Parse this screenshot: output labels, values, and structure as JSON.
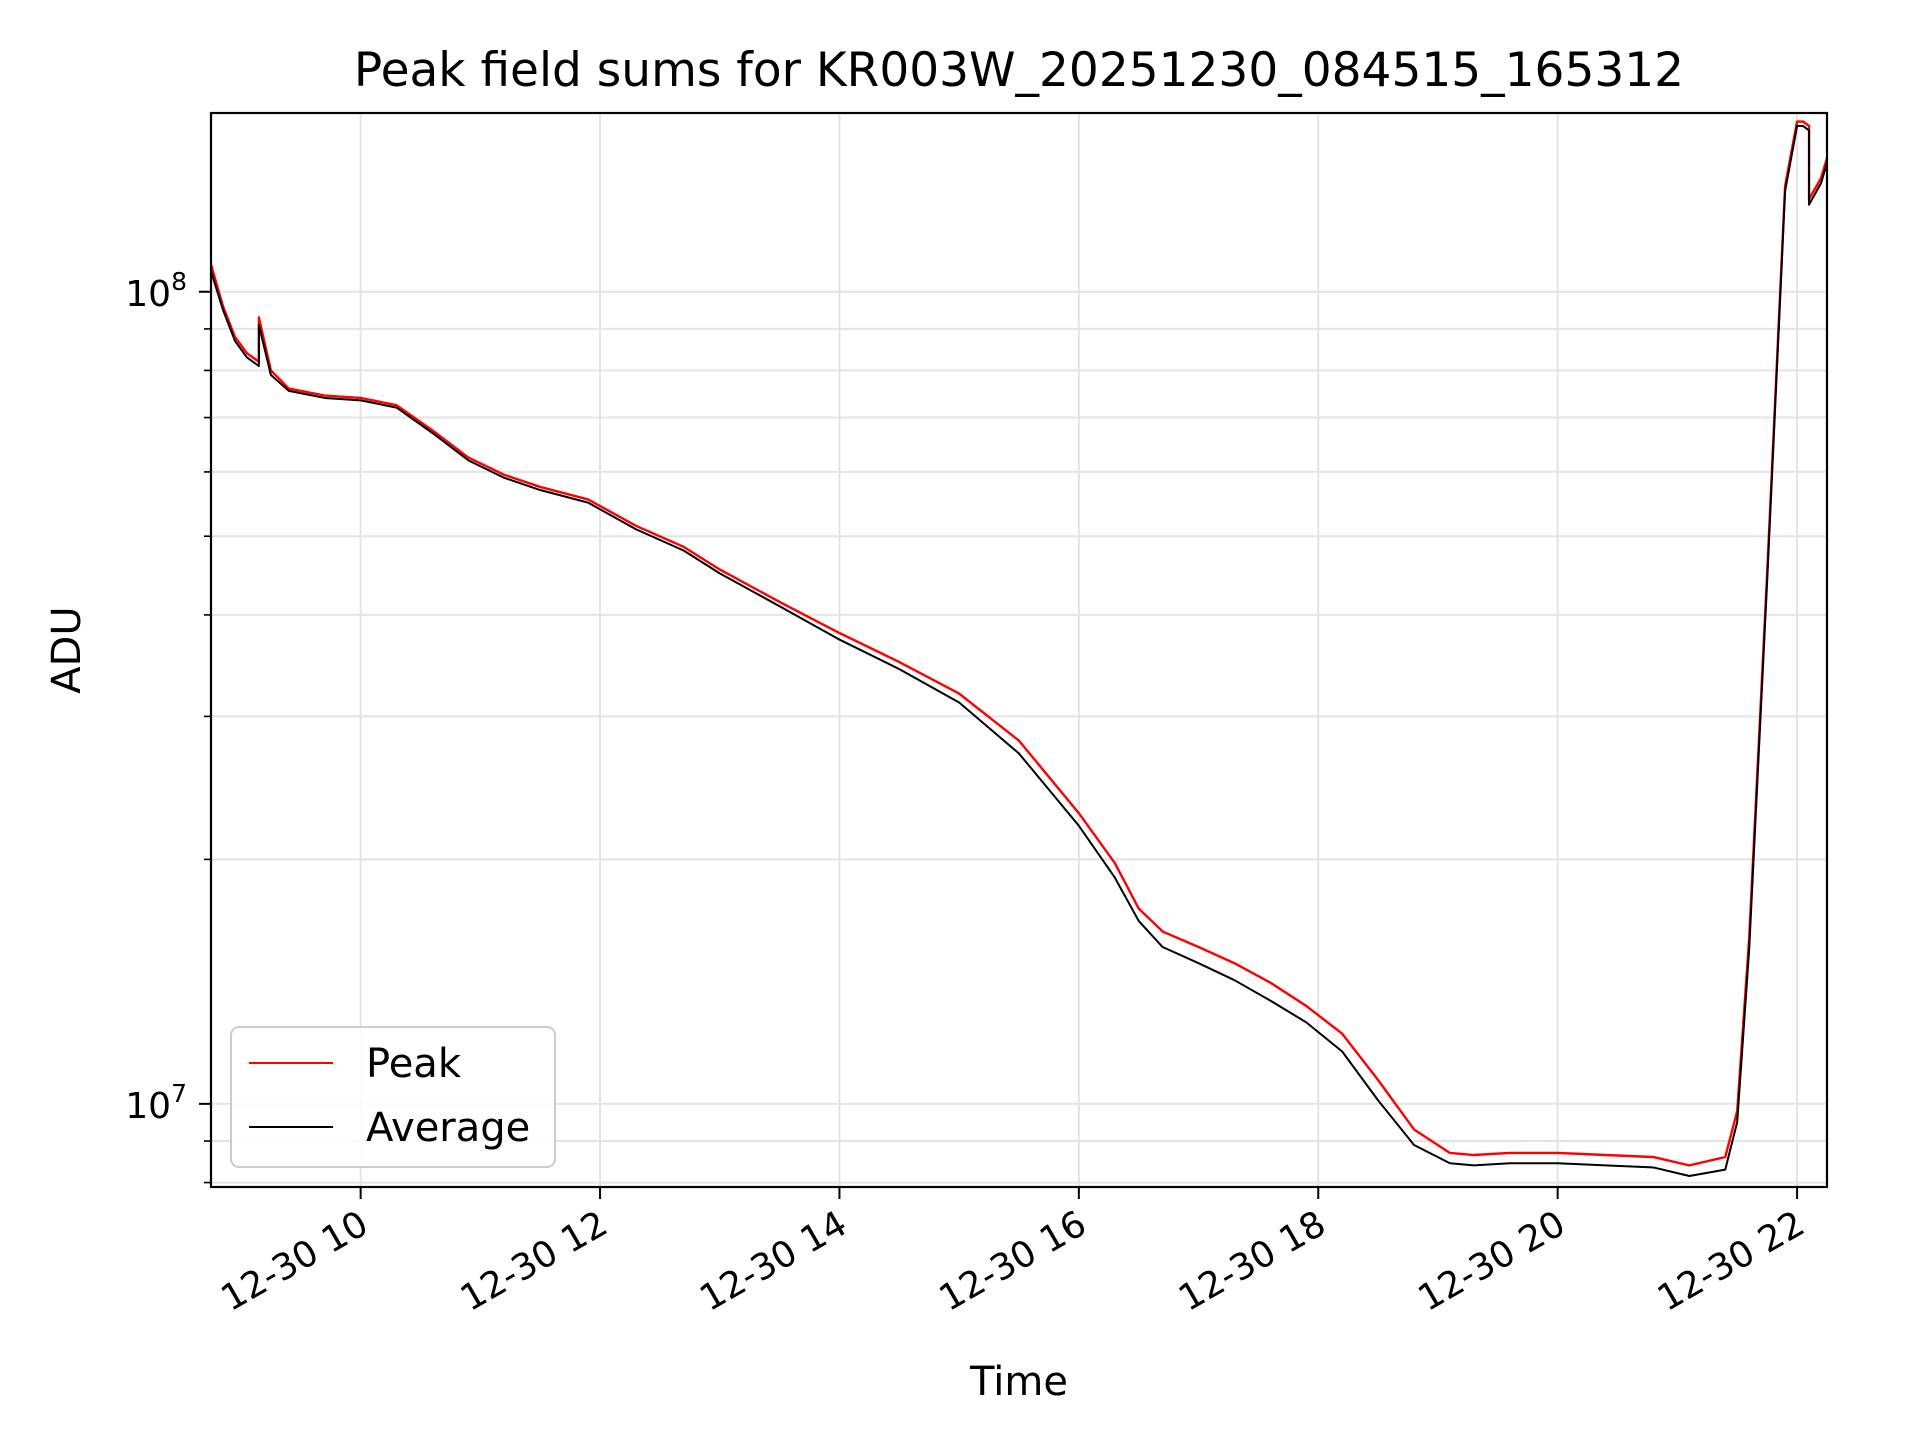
{
  "chart_data": {
    "type": "line",
    "title": "Peak field sums for KR003W_20251230_084515_165312",
    "xlabel": "Time",
    "ylabel": "ADU",
    "yscale": "log",
    "grid": true,
    "legend_position": "lower-left",
    "xlim": [
      8.75,
      22.25
    ],
    "ylim": [
      7900000,
      166000000
    ],
    "x_ticks": [
      {
        "value": 10,
        "label": "12-30 10"
      },
      {
        "value": 12,
        "label": "12-30 12"
      },
      {
        "value": 14,
        "label": "12-30 14"
      },
      {
        "value": 16,
        "label": "12-30 16"
      },
      {
        "value": 18,
        "label": "12-30 18"
      },
      {
        "value": 20,
        "label": "12-30 20"
      },
      {
        "value": 22,
        "label": "12-30 22"
      }
    ],
    "y_ticks": [
      {
        "value": 10000000,
        "base": "10",
        "exp": "7"
      },
      {
        "value": 100000000,
        "base": "10",
        "exp": "8"
      }
    ],
    "series": [
      {
        "name": "Peak",
        "color": "#ff0000",
        "x": [
          8.75,
          8.85,
          8.95,
          9.05,
          9.15,
          9.15,
          9.25,
          9.4,
          9.7,
          10.0,
          10.3,
          10.6,
          10.9,
          11.2,
          11.5,
          11.9,
          12.3,
          12.7,
          13.0,
          13.5,
          14.0,
          14.5,
          15.0,
          15.5,
          16.0,
          16.3,
          16.5,
          16.7,
          17.0,
          17.3,
          17.6,
          17.9,
          18.2,
          18.5,
          18.8,
          19.1,
          19.3,
          19.6,
          20.0,
          20.4,
          20.8,
          21.1,
          21.4,
          21.5,
          21.6,
          21.75,
          21.9,
          22.0,
          22.05,
          22.1,
          22.1,
          22.2,
          22.25
        ],
        "values": [
          108000000,
          96000000,
          88000000,
          84000000,
          82000000,
          93000000,
          80000000,
          76000000,
          74500000,
          74000000,
          72500000,
          67500000,
          62500000,
          59500000,
          57500000,
          55500000,
          51500000,
          48500000,
          45500000,
          41500000,
          38000000,
          35000000,
          32000000,
          28000000,
          22800000,
          19800000,
          17400000,
          16300000,
          15600000,
          14900000,
          14100000,
          13200000,
          12200000,
          10700000,
          9300000,
          8700000,
          8650000,
          8700000,
          8700000,
          8650000,
          8600000,
          8400000,
          8600000,
          9800000,
          16000000,
          45000000,
          135000000,
          162000000,
          162000000,
          160000000,
          130000000,
          138000000,
          146000000
        ]
      },
      {
        "name": "Average",
        "color": "#000000",
        "x": [
          8.75,
          8.85,
          8.95,
          9.05,
          9.15,
          9.15,
          9.25,
          9.4,
          9.7,
          10.0,
          10.3,
          10.6,
          10.9,
          11.2,
          11.5,
          11.9,
          12.3,
          12.7,
          13.0,
          13.5,
          14.0,
          14.5,
          15.0,
          15.5,
          16.0,
          16.3,
          16.5,
          16.7,
          17.0,
          17.3,
          17.6,
          17.9,
          18.2,
          18.5,
          18.8,
          19.1,
          19.3,
          19.6,
          20.0,
          20.4,
          20.8,
          21.1,
          21.4,
          21.5,
          21.6,
          21.75,
          21.9,
          22.0,
          22.05,
          22.1,
          22.1,
          22.2,
          22.25
        ],
        "values": [
          106000000,
          95000000,
          87000000,
          83000000,
          81000000,
          91000000,
          79000000,
          75500000,
          74000000,
          73500000,
          72000000,
          67000000,
          62000000,
          59000000,
          57000000,
          55000000,
          51000000,
          48000000,
          45000000,
          41000000,
          37300000,
          34300000,
          31200000,
          27000000,
          22000000,
          19000000,
          16800000,
          15600000,
          14900000,
          14200000,
          13400000,
          12600000,
          11600000,
          10100000,
          8900000,
          8450000,
          8400000,
          8450000,
          8450000,
          8400000,
          8350000,
          8150000,
          8300000,
          9500000,
          15500000,
          44000000,
          133000000,
          160000000,
          160000000,
          158000000,
          128000000,
          136000000,
          144000000
        ]
      }
    ]
  }
}
